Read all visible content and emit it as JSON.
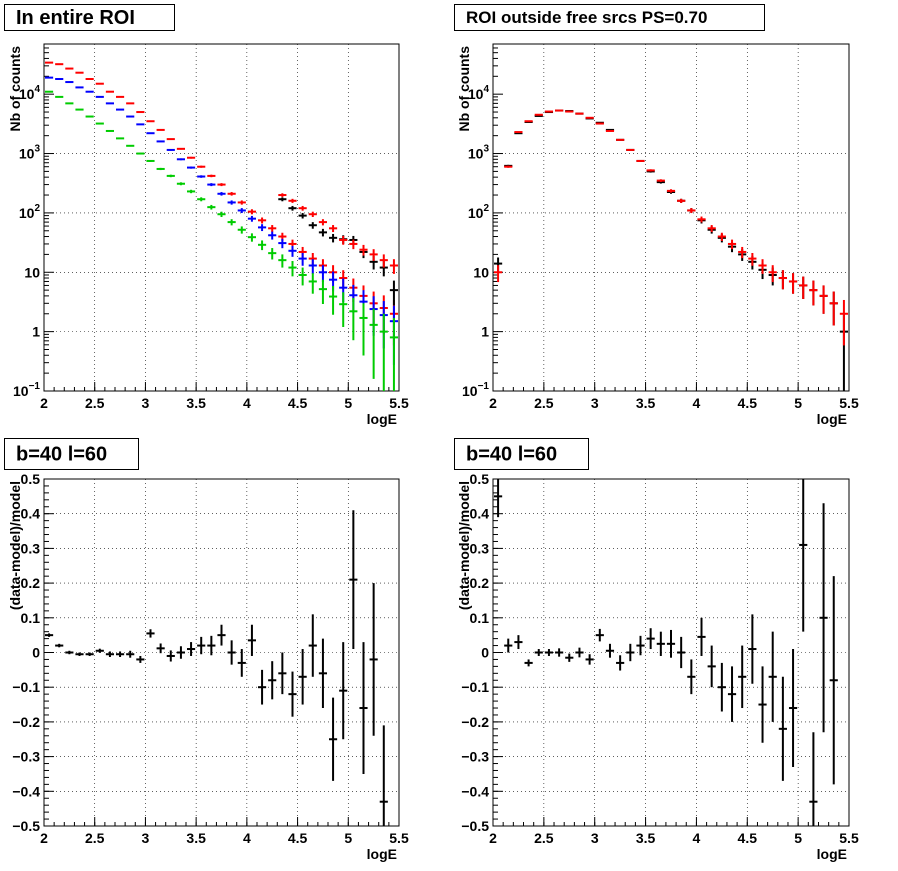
{
  "chart_data": [
    {
      "id": "p1",
      "type": "scatter",
      "title": "In entire ROI",
      "xlabel": "logE",
      "ylabel": "Nb of counts",
      "xlim": [
        2,
        5.5
      ],
      "ylim": [
        0.1,
        70000
      ],
      "yscale": "log",
      "grid": true,
      "xticks": [
        "2",
        "2.5",
        "3",
        "3.5",
        "4",
        "4.5",
        "5",
        "5.5"
      ],
      "yticks": [
        {
          "v": 0.1,
          "label": "10",
          "sup": "−1"
        },
        {
          "v": 1,
          "label": "1",
          "sup": ""
        },
        {
          "v": 10,
          "label": "10",
          "sup": ""
        },
        {
          "v": 100,
          "label": "10",
          "sup": "2"
        },
        {
          "v": 1000,
          "label": "10",
          "sup": "3"
        },
        {
          "v": 10000,
          "label": "10",
          "sup": "4"
        }
      ],
      "series": [
        {
          "color": "#ff0000",
          "x": [
            2.05,
            2.15,
            2.25,
            2.35,
            2.45,
            2.55,
            2.65,
            2.75,
            2.85,
            2.95,
            3.05,
            3.15,
            3.25,
            3.35,
            3.45,
            3.55,
            3.65,
            3.75,
            3.85,
            3.95,
            4.05,
            4.15,
            4.25,
            4.35,
            4.45,
            4.55,
            4.65,
            4.75,
            4.85,
            4.95,
            5.05,
            5.15,
            5.25,
            5.35,
            5.45
          ],
          "y": [
            34000,
            32000,
            27000,
            23000,
            18000,
            15000,
            11000,
            9000,
            7000,
            5000,
            3500,
            2500,
            1750,
            1200,
            850,
            600,
            420,
            300,
            210,
            150,
            105,
            75,
            55,
            40,
            30,
            22,
            17,
            13,
            10,
            8,
            5.5,
            4,
            3,
            2.5,
            2
          ]
        },
        {
          "color": "#0000ff",
          "x": [
            2.05,
            2.15,
            2.25,
            2.35,
            2.45,
            2.55,
            2.65,
            2.75,
            2.85,
            2.95,
            3.05,
            3.15,
            3.25,
            3.35,
            3.45,
            3.55,
            3.65,
            3.75,
            3.85,
            3.95,
            4.05,
            4.15,
            4.25,
            4.35,
            4.45,
            4.55,
            4.65,
            4.75,
            4.85,
            4.95,
            5.05,
            5.15,
            5.25,
            5.35,
            5.45
          ],
          "y": [
            19000,
            18000,
            16000,
            13000,
            11000,
            9000,
            7000,
            5500,
            4200,
            3100,
            2200,
            1600,
            1150,
            800,
            580,
            410,
            300,
            210,
            150,
            110,
            80,
            57,
            42,
            31,
            23,
            17,
            13,
            10,
            7.5,
            5.5,
            4.1,
            3.2,
            2.4,
            1.9,
            1.5
          ]
        },
        {
          "color": "#00cc00",
          "x": [
            2.05,
            2.15,
            2.25,
            2.35,
            2.45,
            2.55,
            2.65,
            2.75,
            2.85,
            2.95,
            3.05,
            3.15,
            3.25,
            3.35,
            3.45,
            3.55,
            3.65,
            3.75,
            3.85,
            3.95,
            4.05,
            4.15,
            4.25,
            4.35,
            4.45,
            4.55,
            4.65,
            4.75,
            4.85,
            4.95,
            5.05,
            5.15,
            5.25,
            5.35,
            5.45
          ],
          "y": [
            11000,
            9000,
            7000,
            5500,
            4200,
            3200,
            2400,
            1800,
            1350,
            1000,
            750,
            550,
            420,
            310,
            230,
            170,
            125,
            95,
            70,
            52,
            39,
            29,
            21,
            16,
            12,
            9,
            7,
            5.2,
            3.9,
            2.9,
            2.2,
            1.7,
            1.3,
            1.0,
            0.8
          ]
        },
        {
          "color": "#000000",
          "x": [
            4.35,
            4.45,
            4.55,
            4.65,
            4.75,
            4.85,
            4.95,
            5.05,
            5.15,
            5.25,
            5.35,
            5.45
          ],
          "y": [
            170,
            120,
            90,
            62,
            47,
            38,
            36,
            35,
            22,
            15,
            12,
            5
          ]
        },
        {
          "color": "#ff0000",
          "x": [
            4.35,
            4.45,
            4.55,
            4.65,
            4.75,
            4.85,
            4.95,
            5.05,
            5.15,
            5.25,
            5.35,
            5.45
          ],
          "y": [
            200,
            160,
            120,
            95,
            70,
            55,
            35,
            30,
            24,
            20,
            16,
            13
          ]
        }
      ]
    },
    {
      "id": "p2",
      "type": "scatter",
      "title": "ROI outside free srcs PS=0.70",
      "xlabel": "logE",
      "ylabel": "Nb of counts",
      "xlim": [
        2,
        5.5
      ],
      "ylim": [
        0.1,
        70000
      ],
      "yscale": "log",
      "grid": true,
      "xticks": [
        "2",
        "2.5",
        "3",
        "3.5",
        "4",
        "4.5",
        "5",
        "5.5"
      ],
      "yticks": [
        {
          "v": 0.1,
          "label": "10",
          "sup": "−1"
        },
        {
          "v": 1,
          "label": "1",
          "sup": ""
        },
        {
          "v": 10,
          "label": "10",
          "sup": ""
        },
        {
          "v": 100,
          "label": "10",
          "sup": "2"
        },
        {
          "v": 1000,
          "label": "10",
          "sup": "3"
        },
        {
          "v": 10000,
          "label": "10",
          "sup": "4"
        }
      ],
      "series": [
        {
          "color": "#000000",
          "x": [
            2.05,
            2.15,
            2.25,
            2.35,
            2.45,
            2.55,
            2.65,
            2.75,
            2.85,
            2.95,
            3.05,
            3.15,
            3.25,
            3.35,
            3.45,
            3.55,
            3.65,
            3.75,
            3.85,
            3.95,
            4.05,
            4.15,
            4.25,
            4.35,
            4.45,
            4.55,
            4.65,
            4.75,
            4.85,
            4.95,
            5.05,
            5.15,
            5.25,
            5.35,
            5.45
          ],
          "y": [
            14,
            620,
            2200,
            3400,
            4300,
            5000,
            5300,
            5200,
            4700,
            3900,
            3300,
            2500,
            1700,
            1150,
            750,
            500,
            330,
            225,
            160,
            110,
            75,
            52,
            38,
            27,
            20,
            15,
            11,
            9,
            8,
            7,
            6,
            5,
            4,
            3,
            1
          ]
        },
        {
          "color": "#ff0000",
          "x": [
            2.05,
            2.15,
            2.25,
            2.35,
            2.45,
            2.55,
            2.65,
            2.75,
            2.85,
            2.95,
            3.05,
            3.15,
            3.25,
            3.35,
            3.45,
            3.55,
            3.65,
            3.75,
            3.85,
            3.95,
            4.05,
            4.15,
            4.25,
            4.35,
            4.45,
            4.55,
            4.65,
            4.75,
            4.85,
            4.95,
            5.05,
            5.15,
            5.25,
            5.35,
            5.45
          ],
          "y": [
            10,
            600,
            2300,
            3500,
            4500,
            5100,
            5300,
            5100,
            4700,
            4000,
            3200,
            2400,
            1700,
            1150,
            750,
            520,
            350,
            235,
            160,
            110,
            78,
            55,
            40,
            30,
            22,
            17,
            13,
            10,
            8,
            7,
            6,
            5,
            4,
            3,
            2
          ]
        }
      ]
    },
    {
      "id": "p3",
      "type": "scatter",
      "title": "b=40 l=60",
      "xlabel": "logE",
      "ylabel": "(data-model)/model",
      "xlim": [
        2,
        5.5
      ],
      "ylim": [
        -0.5,
        0.5
      ],
      "yscale": "linear",
      "grid": true,
      "xticks": [
        "2",
        "2.5",
        "3",
        "3.5",
        "4",
        "4.5",
        "5",
        "5.5"
      ],
      "yticks": [
        {
          "v": -0.5,
          "label": "−0.5"
        },
        {
          "v": -0.4,
          "label": "−0.4"
        },
        {
          "v": -0.3,
          "label": "−0.3"
        },
        {
          "v": -0.2,
          "label": "−0.2"
        },
        {
          "v": -0.1,
          "label": "−0.1"
        },
        {
          "v": 0,
          "label": "0"
        },
        {
          "v": 0.1,
          "label": "0.1"
        },
        {
          "v": 0.2,
          "label": "0.2"
        },
        {
          "v": 0.3,
          "label": "0.3"
        },
        {
          "v": 0.4,
          "label": "0.4"
        },
        {
          "v": 0.5,
          "label": "0.5"
        }
      ],
      "series": [
        {
          "color": "#000000",
          "x": [
            2.05,
            2.15,
            2.25,
            2.35,
            2.45,
            2.55,
            2.65,
            2.75,
            2.85,
            2.95,
            3.05,
            3.15,
            3.25,
            3.35,
            3.45,
            3.55,
            3.65,
            3.75,
            3.85,
            3.95,
            4.05,
            4.15,
            4.25,
            4.35,
            4.45,
            4.55,
            4.65,
            4.75,
            4.85,
            4.95,
            5.05,
            5.15,
            5.25,
            5.35
          ],
          "y": [
            0.05,
            0.02,
            0.0,
            -0.005,
            -0.005,
            0.005,
            -0.005,
            -0.005,
            -0.005,
            -0.02,
            0.055,
            0.012,
            -0.01,
            0.0,
            0.01,
            0.02,
            0.02,
            0.05,
            0.0,
            -0.03,
            0.035,
            -0.1,
            -0.08,
            -0.06,
            -0.12,
            -0.07,
            0.02,
            -0.06,
            -0.25,
            -0.11,
            0.21,
            -0.16,
            -0.02,
            -0.43
          ],
          "err": [
            0.005,
            0.005,
            0.005,
            0.005,
            0.005,
            0.006,
            0.008,
            0.008,
            0.01,
            0.01,
            0.012,
            0.014,
            0.016,
            0.018,
            0.02,
            0.025,
            0.028,
            0.03,
            0.035,
            0.04,
            0.045,
            0.05,
            0.055,
            0.06,
            0.065,
            0.08,
            0.09,
            0.1,
            0.12,
            0.14,
            0.2,
            0.19,
            0.22,
            0.22
          ]
        }
      ]
    },
    {
      "id": "p4",
      "type": "scatter",
      "title": "b=40 l=60",
      "xlabel": "logE",
      "ylabel": "(data-model)/model",
      "xlim": [
        2,
        5.5
      ],
      "ylim": [
        -0.5,
        0.5
      ],
      "yscale": "linear",
      "grid": true,
      "xticks": [
        "2",
        "2.5",
        "3",
        "3.5",
        "4",
        "4.5",
        "5",
        "5.5"
      ],
      "yticks": [
        {
          "v": -0.5,
          "label": "−0.5"
        },
        {
          "v": -0.4,
          "label": "−0.4"
        },
        {
          "v": -0.3,
          "label": "−0.3"
        },
        {
          "v": -0.2,
          "label": "−0.2"
        },
        {
          "v": -0.1,
          "label": "−0.1"
        },
        {
          "v": 0,
          "label": "0"
        },
        {
          "v": 0.1,
          "label": "0.1"
        },
        {
          "v": 0.2,
          "label": "0.2"
        },
        {
          "v": 0.3,
          "label": "0.3"
        },
        {
          "v": 0.4,
          "label": "0.4"
        },
        {
          "v": 0.5,
          "label": "0.5"
        }
      ],
      "series": [
        {
          "color": "#000000",
          "x": [
            2.05,
            2.15,
            2.25,
            2.35,
            2.45,
            2.55,
            2.65,
            2.75,
            2.85,
            2.95,
            3.05,
            3.15,
            3.25,
            3.35,
            3.45,
            3.55,
            3.65,
            3.75,
            3.85,
            3.95,
            4.05,
            4.15,
            4.25,
            4.35,
            4.45,
            4.55,
            4.65,
            4.75,
            4.85,
            4.95,
            5.05,
            5.15,
            5.25,
            5.35
          ],
          "y": [
            0.45,
            0.02,
            0.03,
            -0.03,
            0.0,
            0.0,
            0.0,
            -0.015,
            0.0,
            -0.02,
            0.05,
            0.005,
            -0.03,
            0.0,
            0.02,
            0.04,
            0.025,
            0.025,
            0.0,
            -0.07,
            0.045,
            -0.04,
            -0.1,
            -0.12,
            -0.07,
            0.01,
            -0.15,
            -0.07,
            -0.22,
            -0.16,
            0.31,
            -0.43,
            0.1,
            -0.08
          ],
          "err": [
            0.06,
            0.02,
            0.02,
            0.01,
            0.01,
            0.01,
            0.012,
            0.012,
            0.014,
            0.015,
            0.018,
            0.02,
            0.022,
            0.025,
            0.028,
            0.03,
            0.035,
            0.04,
            0.045,
            0.05,
            0.055,
            0.06,
            0.07,
            0.08,
            0.09,
            0.1,
            0.11,
            0.13,
            0.15,
            0.17,
            0.25,
            0.2,
            0.33,
            0.3
          ]
        }
      ]
    }
  ]
}
